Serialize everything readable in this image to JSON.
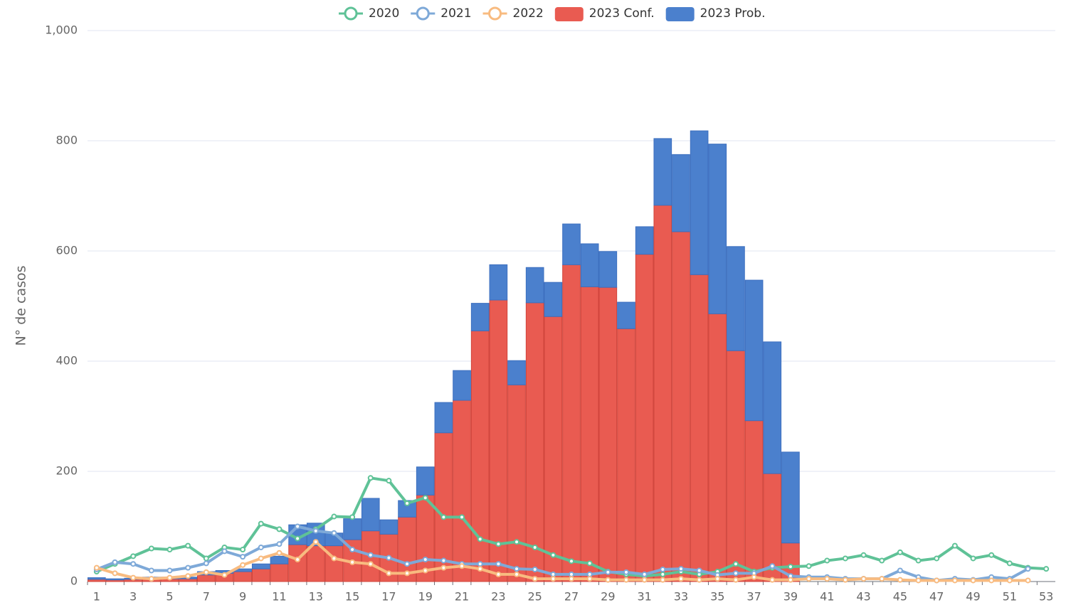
{
  "chart_data": {
    "type": "bar",
    "ylabel": "N° de casos",
    "categories": [
      1,
      null,
      3,
      null,
      5,
      null,
      7,
      null,
      9,
      null,
      11,
      null,
      13,
      null,
      15,
      null,
      17,
      null,
      19,
      null,
      21,
      null,
      23,
      null,
      25,
      null,
      27,
      null,
      29,
      null,
      31,
      null,
      33,
      null,
      35,
      null,
      37,
      null,
      39,
      null,
      41,
      null,
      43,
      null,
      45,
      null,
      47,
      null,
      49,
      null,
      51,
      null,
      53
    ],
    "ylim": [
      0,
      1000
    ],
    "yticks": [
      0,
      200,
      400,
      600,
      800,
      {
        "value": 1000,
        "label": "1,000"
      }
    ],
    "grid": true,
    "legend": "top",
    "series": [
      {
        "name": "2020",
        "type": "line",
        "color": "#5fc297",
        "values": [
          18,
          32,
          46,
          60,
          58,
          65,
          42,
          62,
          58,
          105,
          95,
          78,
          95,
          118,
          117,
          188,
          183,
          142,
          152,
          117,
          117,
          77,
          68,
          72,
          62,
          48,
          37,
          33,
          18,
          13,
          10,
          13,
          18,
          13,
          18,
          32,
          18,
          25,
          27,
          28,
          38,
          42,
          48,
          38,
          53,
          38,
          42,
          65,
          42,
          48,
          33,
          25,
          23
        ]
      },
      {
        "name": "2021",
        "type": "line",
        "color": "#7ea9d8",
        "values": [
          22,
          35,
          32,
          20,
          20,
          25,
          33,
          55,
          45,
          62,
          68,
          100,
          92,
          88,
          58,
          48,
          43,
          32,
          40,
          38,
          32,
          32,
          32,
          23,
          22,
          13,
          13,
          13,
          17,
          17,
          13,
          22,
          23,
          20,
          12,
          15,
          15,
          28,
          10,
          8,
          8,
          5,
          5,
          5,
          20,
          8,
          2,
          5,
          3,
          8,
          5,
          23,
          null
        ]
      },
      {
        "name": "2022",
        "type": "line",
        "color": "#f8bb80",
        "values": [
          25,
          15,
          7,
          5,
          7,
          10,
          17,
          12,
          30,
          42,
          52,
          40,
          72,
          42,
          35,
          32,
          15,
          15,
          20,
          25,
          28,
          23,
          13,
          13,
          5,
          5,
          5,
          5,
          3,
          3,
          3,
          3,
          5,
          3,
          5,
          3,
          8,
          3,
          3,
          5,
          5,
          3,
          5,
          5,
          3,
          2,
          2,
          2,
          2,
          2,
          2,
          2,
          null
        ]
      },
      {
        "name": "2023 Conf.",
        "type": "bar",
        "color": "#e95b51",
        "values": [
          4,
          3,
          4,
          5,
          5,
          5,
          12,
          15,
          18,
          23,
          32,
          67,
          65,
          65,
          76,
          92,
          86,
          117,
          157,
          270,
          329,
          455,
          511,
          357,
          506,
          481,
          575,
          535,
          534,
          459,
          594,
          683,
          635,
          557,
          486,
          419,
          292,
          196,
          70,
          null,
          null,
          null,
          null,
          null,
          null,
          null,
          null,
          null,
          null,
          null,
          null,
          null,
          null
        ]
      },
      {
        "name": "2023 Prob.",
        "type": "bar",
        "color": "#4b80cd",
        "values": [
          3,
          2,
          2,
          3,
          3,
          3,
          6,
          5,
          5,
          9,
          14,
          36,
          41,
          23,
          38,
          59,
          26,
          30,
          51,
          55,
          54,
          50,
          64,
          44,
          64,
          62,
          74,
          78,
          65,
          48,
          50,
          121,
          140,
          261,
          308,
          189,
          255,
          239,
          165,
          null,
          null,
          null,
          null,
          null,
          null,
          null,
          null,
          null,
          null,
          null,
          null,
          null,
          null
        ]
      }
    ]
  }
}
